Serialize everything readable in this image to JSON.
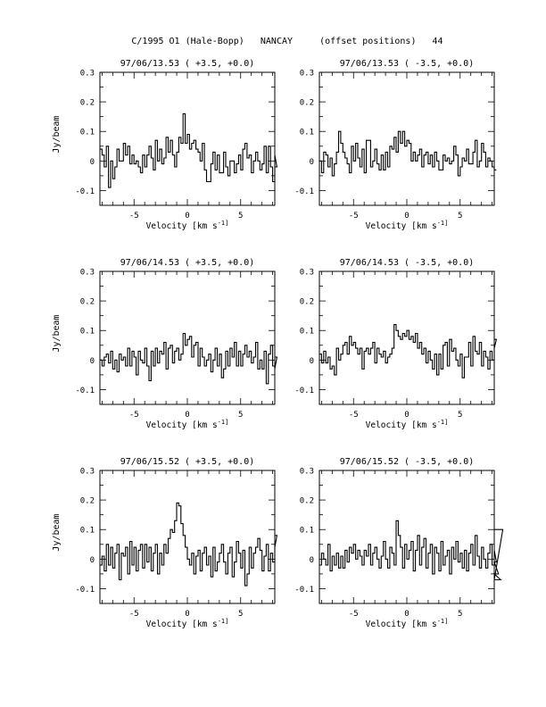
{
  "page_title": "C/1995 O1 (Hale-Bopp)   NANCAY     (offset positions)   44",
  "chart_data": [
    {
      "type": "line",
      "title": "97/06/13.53  ( +3.5, +0.0)",
      "xlabel": "Velocity [km s^-1]",
      "ylabel": "Jy/beam",
      "xlim": [
        -8.2,
        8.2
      ],
      "ylim": [
        -0.15,
        0.3
      ],
      "xticks": [
        -5,
        0,
        5
      ],
      "yticks": [
        -0.1,
        0,
        0.1,
        0.2,
        0.3
      ],
      "series": [
        {
          "x_start": -8.2,
          "x_step": 0.2,
          "values": [
            0.04,
            0.02,
            -0.02,
            0.05,
            -0.09,
            0.0,
            -0.06,
            -0.02,
            0.04,
            0.0,
            0.0,
            0.06,
            0.02,
            0.05,
            -0.01,
            0.02,
            -0.01,
            0.0,
            -0.02,
            -0.04,
            0.02,
            -0.02,
            0.02,
            0.05,
            0.01,
            -0.03,
            0.07,
            0.0,
            0.04,
            -0.01,
            0.01,
            0.08,
            0.03,
            0.07,
            0.02,
            -0.02,
            0.03,
            0.08,
            0.06,
            0.16,
            0.06,
            0.09,
            0.04,
            0.06,
            0.07,
            0.04,
            0.03,
            0.0,
            0.06,
            -0.03,
            -0.07,
            -0.07,
            -0.01,
            0.03,
            -0.03,
            0.02,
            -0.04,
            -0.04,
            0.03,
            -0.02,
            -0.05,
            0.0,
            0.0,
            -0.04,
            -0.01,
            0.02,
            -0.03,
            0.04,
            0.06,
            0.01,
            0.02,
            -0.04,
            0.0,
            0.03,
            0.0,
            -0.03,
            -0.01,
            0.05,
            -0.04,
            0.05,
            -0.02,
            -0.07,
            0.02,
            -0.02
          ]
        }
      ]
    },
    {
      "type": "line",
      "title": "97/06/13.53  ( -3.5, +0.0)",
      "xlabel": "Velocity [km s^-1]",
      "ylabel": "",
      "xlim": [
        -8.2,
        8.2
      ],
      "ylim": [
        -0.15,
        0.3
      ],
      "xticks": [
        -5,
        0,
        5
      ],
      "yticks": [
        -0.1,
        0,
        0.1,
        0.2,
        0.3
      ],
      "series": [
        {
          "x_start": -8.2,
          "x_step": 0.2,
          "values": [
            0.0,
            -0.04,
            0.03,
            0.02,
            -0.02,
            0.01,
            -0.05,
            -0.01,
            0.03,
            0.1,
            0.06,
            0.03,
            0.01,
            -0.01,
            -0.04,
            0.05,
            0.0,
            0.06,
            0.01,
            -0.02,
            0.04,
            -0.04,
            0.07,
            0.07,
            -0.02,
            0.0,
            0.04,
            -0.01,
            -0.03,
            0.02,
            -0.03,
            0.03,
            -0.02,
            0.05,
            0.04,
            0.08,
            0.03,
            0.1,
            0.06,
            0.1,
            0.05,
            0.07,
            0.06,
            0.0,
            0.03,
            0.0,
            0.02,
            0.04,
            -0.02,
            0.02,
            0.03,
            -0.01,
            0.02,
            -0.02,
            0.03,
            0.0,
            -0.03,
            -0.03,
            0.02,
            0.0,
            0.01,
            -0.01,
            0.0,
            0.05,
            0.02,
            -0.05,
            -0.02,
            0.01,
            0.0,
            0.04,
            -0.01,
            -0.01,
            0.03,
            0.07,
            -0.02,
            0.0,
            0.06,
            0.03,
            -0.02,
            0.01,
            0.0,
            -0.02,
            -0.03,
            -0.03
          ]
        }
      ]
    },
    {
      "type": "line",
      "title": "97/06/14.53  ( +3.5, +0.0)",
      "xlabel": "Velocity [km s^-1]",
      "ylabel": "Jy/beam",
      "xlim": [
        -8.2,
        8.2
      ],
      "ylim": [
        -0.15,
        0.3
      ],
      "xticks": [
        -5,
        0,
        5
      ],
      "yticks": [
        -0.1,
        0,
        0.1,
        0.2,
        0.3
      ],
      "series": [
        {
          "x_start": -8.2,
          "x_step": 0.2,
          "values": [
            0.0,
            -0.02,
            0.01,
            0.02,
            -0.01,
            0.03,
            -0.03,
            0.0,
            -0.04,
            0.02,
            0.0,
            0.01,
            -0.02,
            0.04,
            -0.02,
            0.03,
            0.01,
            -0.05,
            0.03,
            0.0,
            -0.01,
            0.04,
            -0.02,
            -0.07,
            0.03,
            -0.02,
            0.04,
            -0.01,
            0.03,
            0.02,
            0.06,
            -0.03,
            0.04,
            0.05,
            -0.01,
            0.03,
            0.04,
            0.0,
            0.02,
            0.09,
            0.05,
            0.07,
            0.08,
            0.01,
            0.05,
            0.06,
            -0.02,
            0.04,
            0.01,
            -0.02,
            0.0,
            0.02,
            -0.04,
            0.0,
            0.04,
            -0.02,
            0.02,
            -0.06,
            -0.03,
            0.03,
            -0.02,
            0.04,
            0.01,
            0.06,
            -0.02,
            0.03,
            -0.02,
            0.02,
            0.05,
            0.01,
            0.03,
            -0.01,
            0.01,
            0.06,
            -0.03,
            0.0,
            -0.03,
            0.03,
            -0.08,
            0.02,
            0.05,
            -0.02,
            -0.03,
            0.01
          ]
        }
      ]
    },
    {
      "type": "line",
      "title": "97/06/14.53  ( -3.5, +0.0)",
      "xlabel": "Velocity [km s^-1]",
      "ylabel": "",
      "xlim": [
        -8.2,
        8.2
      ],
      "ylim": [
        -0.15,
        0.3
      ],
      "xticks": [
        -5,
        0,
        5
      ],
      "yticks": [
        -0.1,
        0,
        0.1,
        0.2,
        0.3
      ],
      "series": [
        {
          "x_start": -8.2,
          "x_step": 0.2,
          "values": [
            0.02,
            -0.01,
            0.03,
            -0.01,
            0.01,
            -0.03,
            -0.02,
            -0.05,
            0.04,
            0.0,
            0.02,
            0.05,
            0.06,
            0.02,
            0.08,
            0.05,
            0.06,
            0.04,
            0.02,
            0.04,
            -0.03,
            0.03,
            0.04,
            0.02,
            0.04,
            0.06,
            -0.01,
            0.04,
            0.02,
            0.01,
            0.03,
            -0.01,
            0.01,
            0.02,
            0.04,
            0.12,
            0.1,
            0.08,
            0.07,
            0.09,
            0.08,
            0.1,
            0.07,
            0.08,
            0.06,
            0.09,
            0.04,
            0.06,
            0.02,
            0.04,
            -0.01,
            0.03,
            0.0,
            -0.03,
            0.02,
            -0.05,
            0.02,
            -0.03,
            0.05,
            0.06,
            -0.02,
            0.07,
            0.03,
            0.04,
            0.0,
            -0.02,
            0.02,
            -0.06,
            0.01,
            0.01,
            0.06,
            -0.02,
            0.08,
            0.03,
            0.02,
            0.06,
            -0.02,
            0.03,
            0.01,
            -0.03,
            0.03,
            0.0,
            0.04,
            0.07
          ]
        }
      ]
    },
    {
      "type": "line",
      "title": "97/06/15.52  ( +3.5, +0.0)",
      "xlabel": "Velocity [km s^-1]",
      "ylabel": "Jy/beam",
      "xlim": [
        -8.2,
        8.2
      ],
      "ylim": [
        -0.15,
        0.3
      ],
      "xticks": [
        -5,
        0,
        5
      ],
      "yticks": [
        -0.1,
        0,
        0.1,
        0.2,
        0.3
      ],
      "series": [
        {
          "x_start": -8.2,
          "x_step": 0.2,
          "values": [
            -0.02,
            0.01,
            -0.04,
            0.05,
            -0.02,
            0.04,
            -0.03,
            0.02,
            0.05,
            -0.07,
            0.02,
            0.01,
            0.04,
            -0.05,
            0.06,
            -0.02,
            0.04,
            -0.04,
            0.03,
            0.05,
            -0.03,
            0.05,
            -0.01,
            0.04,
            -0.04,
            0.02,
            0.05,
            -0.05,
            0.02,
            -0.02,
            0.05,
            0.02,
            0.07,
            0.1,
            0.09,
            0.13,
            0.19,
            0.18,
            0.12,
            0.08,
            0.04,
            0.0,
            -0.02,
            0.02,
            -0.05,
            0.01,
            0.03,
            -0.04,
            0.02,
            0.04,
            -0.02,
            0.01,
            -0.06,
            0.04,
            -0.04,
            -0.01,
            0.02,
            0.05,
            -0.01,
            -0.05,
            0.02,
            0.04,
            -0.06,
            -0.01,
            0.06,
            0.02,
            -0.03,
            0.03,
            -0.09,
            -0.05,
            0.04,
            -0.03,
            0.02,
            0.04,
            0.07,
            0.03,
            -0.04,
            0.01,
            0.05,
            -0.04,
            0.02,
            -0.01,
            0.04,
            0.08
          ]
        }
      ]
    },
    {
      "type": "line",
      "title": "97/06/15.52  ( -3.5, +0.0)",
      "xlabel": "Velocity [km s^-1]",
      "ylabel": "",
      "xlim": [
        -8.2,
        8.2
      ],
      "ylim": [
        -0.15,
        0.3
      ],
      "xticks": [
        -5,
        0,
        5
      ],
      "yticks": [
        -0.1,
        0,
        0.1,
        0.2,
        0.3
      ],
      "series": [
        {
          "x_start": -8.2,
          "x_step": 0.2,
          "values": [
            -0.02,
            0.02,
            0.0,
            -0.02,
            0.05,
            -0.04,
            0.01,
            -0.02,
            0.02,
            -0.03,
            0.01,
            -0.03,
            0.03,
            -0.01,
            0.04,
            0.02,
            0.05,
            0.0,
            0.03,
            0.01,
            -0.02,
            0.03,
            0.01,
            0.05,
            -0.02,
            0.02,
            0.04,
            0.0,
            -0.03,
            0.01,
            0.06,
            0.0,
            -0.03,
            0.04,
            0.02,
            -0.02,
            0.13,
            0.08,
            0.04,
            -0.03,
            0.05,
            0.0,
            0.03,
            0.06,
            -0.04,
            0.03,
            0.08,
            -0.02,
            0.04,
            0.07,
            -0.03,
            0.02,
            0.05,
            -0.05,
            0.04,
            0.02,
            -0.04,
            0.06,
            -0.02,
            0.01,
            0.03,
            -0.05,
            0.04,
            0.0,
            0.06,
            -0.01,
            0.02,
            -0.03,
            0.03,
            -0.04,
            0.02,
            0.05,
            -0.02,
            0.08,
            0.01,
            -0.03,
            0.04,
            0.0,
            -0.03,
            0.02,
            0.05,
            -0.02,
            0.03,
            -0.01,
            -0.05,
            -0.07,
            0.1
          ]
        }
      ]
    }
  ]
}
